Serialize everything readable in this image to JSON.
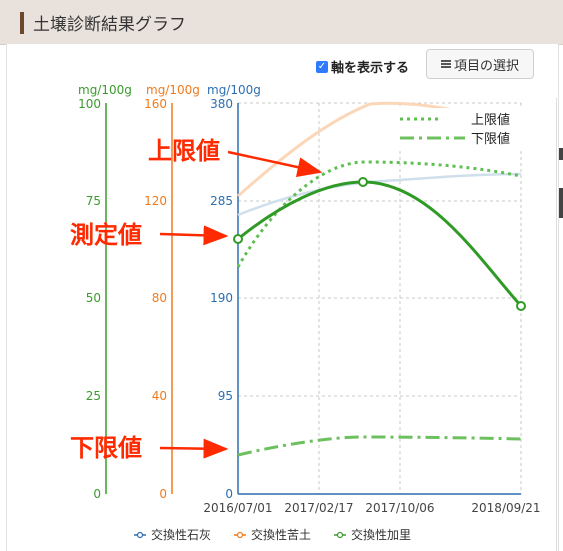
{
  "header": {
    "title": "土壌診断結果グラフ"
  },
  "toolbar": {
    "show_axes_label": "軸を表示する",
    "show_axes_checked": true,
    "select_items_label": "項目の選択"
  },
  "annotations": {
    "upper": "上限値",
    "measured": "測定値",
    "lower": "下限値"
  },
  "colors": {
    "calcium": "#2c6fb0",
    "magnesium": "#f07b1e",
    "potassium": "#3a9b2c",
    "header_bg": "#e9e2dc",
    "accent_bar": "#6b4a2b",
    "annotation": "#ff2a00"
  },
  "chart_data": {
    "type": "line",
    "x": [
      "2016/07/01",
      "2017/02/17",
      "2017/10/06",
      "2018/09/21"
    ],
    "x_ticks": [
      "2016/07/01",
      "2017/02/17",
      "2017/10/06",
      "2018/09/21"
    ],
    "axes": [
      {
        "unit": "mg/100g",
        "series": "交換性加里",
        "ticks": [
          "100",
          "75",
          "50",
          "25",
          "0"
        ],
        "range": [
          0,
          100
        ]
      },
      {
        "unit": "mg/100g",
        "series": "交換性苦土",
        "ticks": [
          "160",
          "120",
          "80",
          "40",
          "0"
        ],
        "range": [
          0,
          160
        ]
      },
      {
        "unit": "mg/100g",
        "series": "交換性石灰",
        "ticks": [
          "380",
          "285",
          "190",
          "95",
          "0"
        ],
        "range": [
          0,
          380
        ]
      }
    ],
    "series": [
      {
        "name": "交換性石灰",
        "x": [
          "2016/07/01",
          "2017/10/06",
          "2018/09/21"
        ],
        "values": [
          null,
          null,
          null
        ]
      },
      {
        "name": "交換性苦土",
        "x": [
          "2016/07/01",
          "2017/10/06",
          "2018/09/21"
        ],
        "values": [
          null,
          null,
          null
        ]
      },
      {
        "name": "交換性加里",
        "measured": [
          65,
          80,
          49
        ],
        "x": [
          "2016/07/01",
          "2017/06/15",
          "2018/09/21"
        ],
        "upper": [
          58,
          86,
          82
        ],
        "lower": [
          10,
          15,
          14
        ]
      }
    ],
    "legend": [
      {
        "name": "上限値",
        "style": "dotted"
      },
      {
        "name": "下限値",
        "style": "dash-dot"
      }
    ],
    "bottom_legend": [
      "交換性石灰",
      "交換性苦土",
      "交換性加里"
    ],
    "grid": true,
    "legend_position": "top-right"
  }
}
